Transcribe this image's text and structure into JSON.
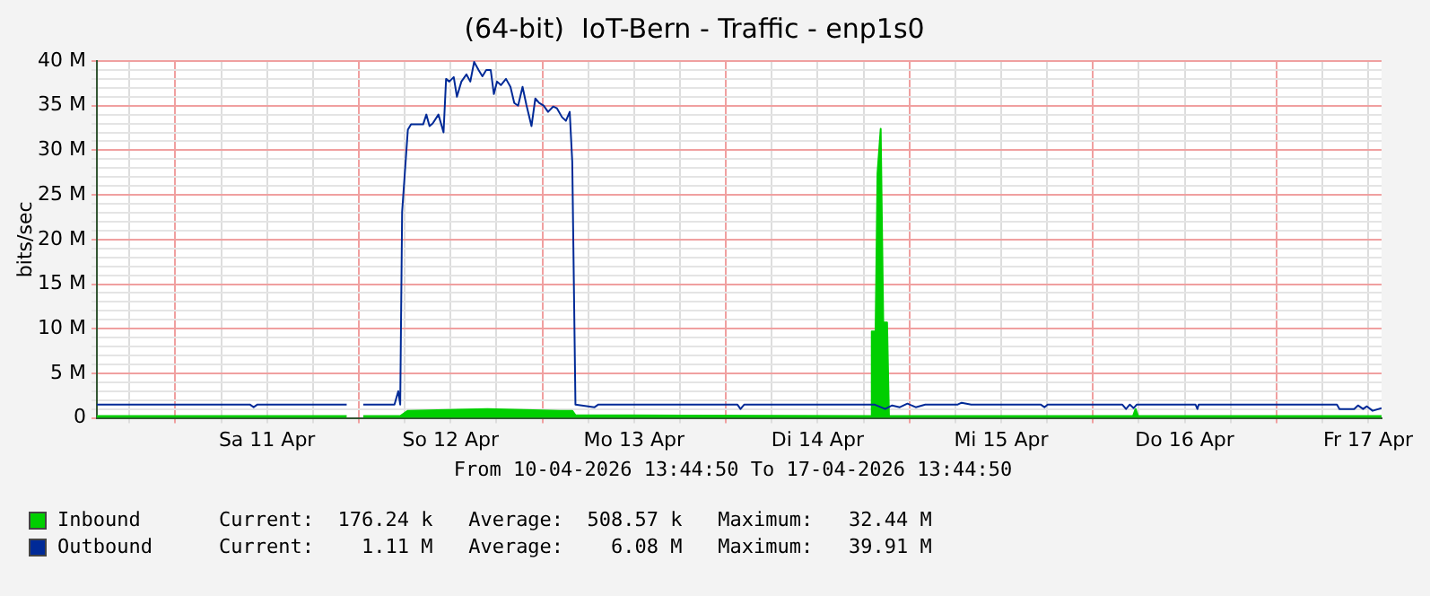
{
  "chart_data": {
    "type": "area",
    "title": "(64-bit)  IoT-Bern - Traffic - enp1s0",
    "ylabel": "bits/sec",
    "xlim": [
      "2026-04-10T13:45",
      "2026-04-17T13:45"
    ],
    "xticks": [
      {
        "value": "2026-04-10T18:00",
        "label": null
      },
      {
        "value": "2026-04-11T00:00",
        "label": null
      },
      {
        "value": "2026-04-11T06:00",
        "label": null
      },
      {
        "value": "2026-04-11T12:00",
        "label": "Sa 11 Apr"
      },
      {
        "value": "2026-04-11T18:00",
        "label": null
      },
      {
        "value": "2026-04-12T00:00",
        "label": null
      },
      {
        "value": "2026-04-12T06:00",
        "label": null
      },
      {
        "value": "2026-04-12T12:00",
        "label": "So 12 Apr"
      },
      {
        "value": "2026-04-12T18:00",
        "label": null
      },
      {
        "value": "2026-04-13T00:00",
        "label": null
      },
      {
        "value": "2026-04-13T06:00",
        "label": null
      },
      {
        "value": "2026-04-13T12:00",
        "label": "Mo 13 Apr"
      },
      {
        "value": "2026-04-13T18:00",
        "label": null
      },
      {
        "value": "2026-04-14T00:00",
        "label": null
      },
      {
        "value": "2026-04-14T06:00",
        "label": null
      },
      {
        "value": "2026-04-14T12:00",
        "label": "Di 14 Apr"
      },
      {
        "value": "2026-04-14T18:00",
        "label": null
      },
      {
        "value": "2026-04-15T00:00",
        "label": null
      },
      {
        "value": "2026-04-15T06:00",
        "label": null
      },
      {
        "value": "2026-04-15T12:00",
        "label": "Mi 15 Apr"
      },
      {
        "value": "2026-04-15T18:00",
        "label": null
      },
      {
        "value": "2026-04-16T00:00",
        "label": null
      },
      {
        "value": "2026-04-16T06:00",
        "label": null
      },
      {
        "value": "2026-04-16T12:00",
        "label": "Do 16 Apr"
      },
      {
        "value": "2026-04-16T18:00",
        "label": null
      },
      {
        "value": "2026-04-17T00:00",
        "label": null
      },
      {
        "value": "2026-04-17T06:00",
        "label": null
      },
      {
        "value": "2026-04-17T12:00",
        "label": "Fr 17 Apr"
      }
    ],
    "ylim": [
      0,
      40
    ],
    "yticks": [
      0,
      {
        "value": 1,
        "label": null
      },
      {
        "value": 2,
        "label": null
      },
      {
        "value": 3,
        "label": null
      },
      {
        "value": 4,
        "label": null
      },
      {
        "value": 5,
        "label": "5 M"
      },
      {
        "value": 6,
        "label": null
      },
      {
        "value": 7,
        "label": null
      },
      {
        "value": 8,
        "label": null
      },
      {
        "value": 9,
        "label": null
      },
      {
        "value": 10,
        "label": "10 M"
      },
      {
        "value": 11,
        "label": null
      },
      {
        "value": 12,
        "label": null
      },
      {
        "value": 13,
        "label": null
      },
      {
        "value": 14,
        "label": null
      },
      {
        "value": 15,
        "label": "15 M"
      },
      {
        "value": 16,
        "label": null
      },
      {
        "value": 17,
        "label": null
      },
      {
        "value": 18,
        "label": null
      },
      {
        "value": 19,
        "label": null
      },
      {
        "value": 20,
        "label": "20 M"
      },
      {
        "value": 21,
        "label": null
      },
      {
        "value": 22,
        "label": null
      },
      {
        "value": 23,
        "label": null
      },
      {
        "value": 24,
        "label": null
      },
      {
        "value": 25,
        "label": "25 M"
      },
      {
        "value": 26,
        "label": null
      },
      {
        "value": 27,
        "label": null
      },
      {
        "value": 28,
        "label": null
      },
      {
        "value": 29,
        "label": null
      },
      {
        "value": 30,
        "label": "30 M"
      },
      {
        "value": 31,
        "label": null
      },
      {
        "value": 32,
        "label": null
      },
      {
        "value": 33,
        "label": null
      },
      {
        "value": 34,
        "label": null
      },
      {
        "value": 35,
        "label": "35 M"
      },
      {
        "value": 36,
        "label": null
      },
      {
        "value": 37,
        "label": null
      },
      {
        "value": 38,
        "label": null
      },
      {
        "value": 39,
        "label": null
      },
      {
        "value": 40,
        "label": "40 M"
      }
    ],
    "grid": true,
    "legend": "bottom",
    "series": [
      {
        "name": "Inbound",
        "color": "#00cf00",
        "x": [
          "2026-04-10T13:45",
          "2026-04-11T22:25",
          "2026-04-11T23:20",
          "2026-04-12T00:35",
          "2026-04-12T05:25",
          "2026-04-12T06:25",
          "2026-04-12T16:50",
          "2026-04-13T02:20",
          "2026-04-13T03:55",
          "2026-04-13T04:20",
          "2026-04-14T18:55",
          "2026-04-14T19:05",
          "2026-04-14T19:35",
          "2026-04-14T19:50",
          "2026-04-14T20:15",
          "2026-04-14T20:35",
          "2026-04-14T21:05",
          "2026-04-14T21:20",
          "2026-04-16T05:15",
          "2026-04-16T05:35",
          "2026-04-16T05:55",
          "2026-04-17T13:45"
        ],
        "values": [
          0.2,
          0.2,
          null,
          0.2,
          0.2,
          0.8,
          1.0,
          0.8,
          0.8,
          0.3,
          0.2,
          9.7,
          9.7,
          27.4,
          32.4,
          10.7,
          10.7,
          0.2,
          0.2,
          1.0,
          0.2,
          0.2
        ]
      },
      {
        "name": "Outbound",
        "color": "#002a97",
        "type": "line",
        "x": [
          "2026-04-10T13:45",
          "2026-04-11T09:45",
          "2026-04-11T10:15",
          "2026-04-11T10:45",
          "2026-04-11T22:25",
          "2026-04-11T23:20",
          "2026-04-12T00:35",
          "2026-04-12T04:40",
          "2026-04-12T05:10",
          "2026-04-12T05:25",
          "2026-04-12T05:40",
          "2026-04-12T06:25",
          "2026-04-12T06:50",
          "2026-04-12T08:25",
          "2026-04-12T08:50",
          "2026-04-12T09:15",
          "2026-04-12T09:40",
          "2026-04-12T10:25",
          "2026-04-12T11:05",
          "2026-04-12T11:25",
          "2026-04-12T11:50",
          "2026-04-12T12:25",
          "2026-04-12T12:50",
          "2026-04-12T13:25",
          "2026-04-12T14:05",
          "2026-04-12T14:35",
          "2026-04-12T15:05",
          "2026-04-12T15:40",
          "2026-04-12T16:10",
          "2026-04-12T16:40",
          "2026-04-12T17:15",
          "2026-04-12T17:40",
          "2026-04-12T18:05",
          "2026-04-12T18:35",
          "2026-04-12T19:15",
          "2026-04-12T19:50",
          "2026-04-12T20:20",
          "2026-04-12T20:50",
          "2026-04-12T21:25",
          "2026-04-12T21:55",
          "2026-04-12T22:35",
          "2026-04-12T23:05",
          "2026-04-12T23:35",
          "2026-04-13T00:10",
          "2026-04-13T00:45",
          "2026-04-13T01:25",
          "2026-04-13T01:55",
          "2026-04-13T02:35",
          "2026-04-13T03:05",
          "2026-04-13T03:35",
          "2026-04-13T03:55",
          "2026-04-13T04:20",
          "2026-04-13T06:50",
          "2026-04-13T07:20",
          "2026-04-14T01:30",
          "2026-04-14T01:55",
          "2026-04-14T02:25",
          "2026-04-14T19:25",
          "2026-04-14T20:50",
          "2026-04-14T21:45",
          "2026-04-14T22:45",
          "2026-04-14T23:45",
          "2026-04-15T00:50",
          "2026-04-15T02:05",
          "2026-04-15T06:20",
          "2026-04-15T06:50",
          "2026-04-15T08:05",
          "2026-04-15T17:10",
          "2026-04-15T17:40",
          "2026-04-15T18:05",
          "2026-04-16T03:50",
          "2026-04-16T04:20",
          "2026-04-16T04:50",
          "2026-04-16T05:20",
          "2026-04-16T05:45",
          "2026-04-16T13:25",
          "2026-04-16T13:40",
          "2026-04-16T13:50",
          "2026-04-17T07:55",
          "2026-04-17T08:15",
          "2026-04-17T10:10",
          "2026-04-17T10:40",
          "2026-04-17T11:20",
          "2026-04-17T11:50",
          "2026-04-17T12:35",
          "2026-04-17T13:45"
        ],
        "values": [
          1.5,
          1.5,
          1.2,
          1.5,
          1.5,
          null,
          1.5,
          1.5,
          3.0,
          1.5,
          23.1,
          32.3,
          32.9,
          32.9,
          34.0,
          32.7,
          33.0,
          34.0,
          32.0,
          38.0,
          37.7,
          38.2,
          36.0,
          37.7,
          38.5,
          37.7,
          39.9,
          39.0,
          38.3,
          39.0,
          39.0,
          36.3,
          37.7,
          37.3,
          38.0,
          37.1,
          35.3,
          35.0,
          37.1,
          35.1,
          32.7,
          35.8,
          35.3,
          35.0,
          34.3,
          34.9,
          34.7,
          33.7,
          33.3,
          34.3,
          28.7,
          1.5,
          1.2,
          1.5,
          1.5,
          1.0,
          1.5,
          1.5,
          1.0,
          1.4,
          1.2,
          1.6,
          1.2,
          1.5,
          1.5,
          1.7,
          1.5,
          1.5,
          1.2,
          1.5,
          1.5,
          1.0,
          1.5,
          1.1,
          1.5,
          1.5,
          1.0,
          1.5,
          1.5,
          1.0,
          1.0,
          1.4,
          1.0,
          1.3,
          0.8,
          1.1
        ]
      }
    ],
    "annotations": [
      "From 10-04-2026 13:44:50 To 17-04-2026 13:44:50",
      "Current:  176.24 k   Average:  508.57 k   Maximum:   32.44 M",
      "Current:    1.11 M   Average:    6.08 M   Maximum:   39.91 M"
    ]
  }
}
